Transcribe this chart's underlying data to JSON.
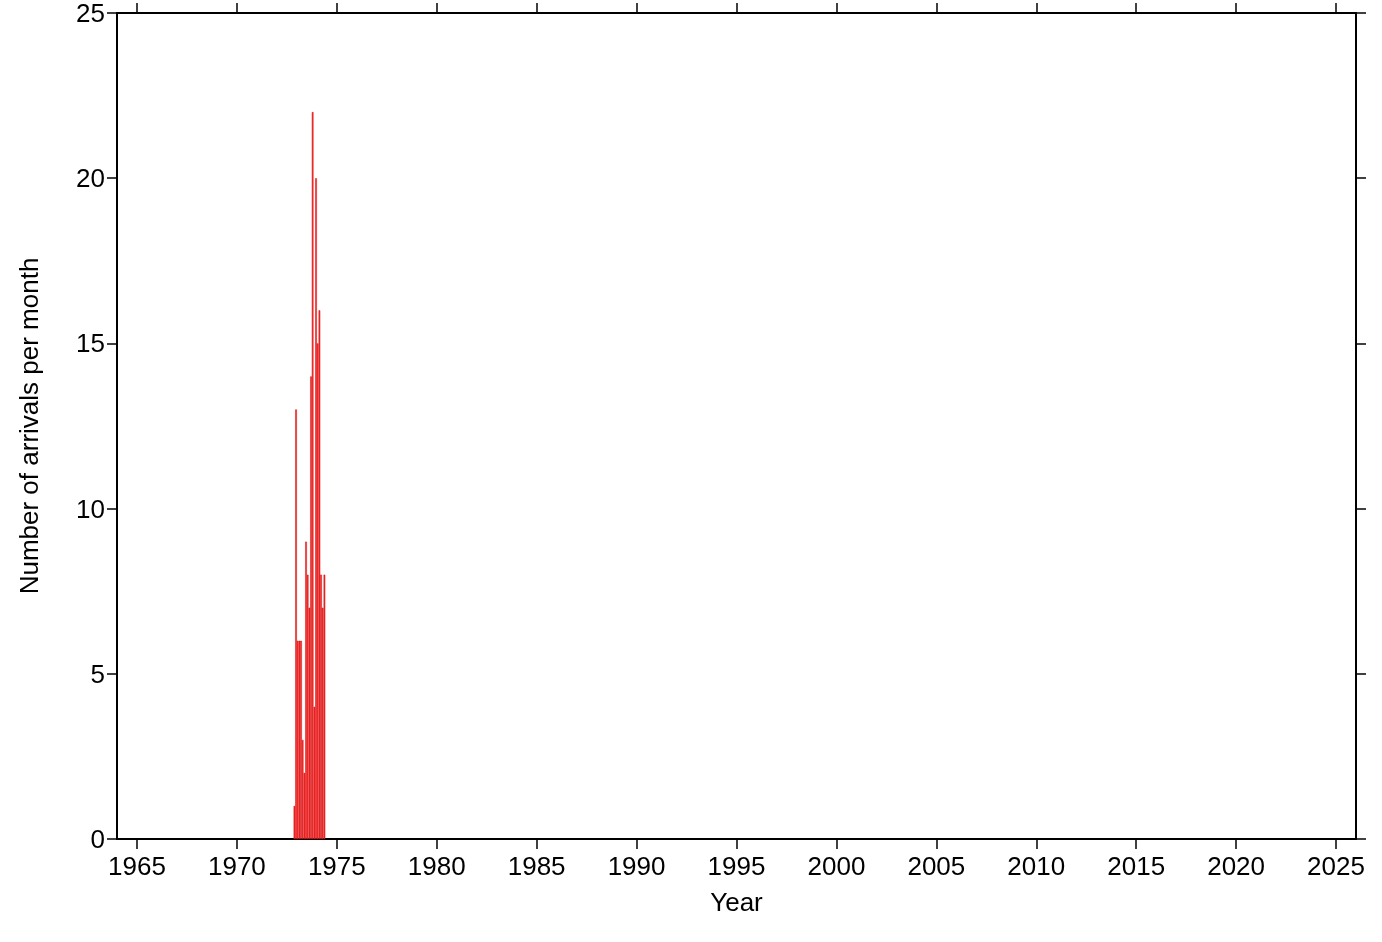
{
  "chart_data": {
    "type": "bar",
    "xlabel": "Year",
    "ylabel": "Number of arrivals per month",
    "x": [
      1972.88,
      1972.96,
      1973.04,
      1973.13,
      1973.21,
      1973.29,
      1973.38,
      1973.46,
      1973.54,
      1973.63,
      1973.71,
      1973.79,
      1973.88,
      1973.96,
      1974.04,
      1974.13,
      1974.21,
      1974.29,
      1974.38
    ],
    "values": [
      1,
      13,
      6,
      6,
      6,
      3,
      2,
      9,
      8,
      7,
      14,
      22,
      4,
      20,
      15,
      16,
      8,
      7,
      8
    ],
    "color": "#ff2a2a",
    "xlim": [
      1964,
      2026
    ],
    "xticks": [
      1965,
      1970,
      1975,
      1980,
      1985,
      1990,
      1995,
      2000,
      2005,
      2010,
      2015,
      2020,
      2025
    ],
    "ylim": [
      0,
      25
    ],
    "yticks": [
      0,
      5,
      10,
      15,
      20,
      25
    ],
    "grid": false
  }
}
